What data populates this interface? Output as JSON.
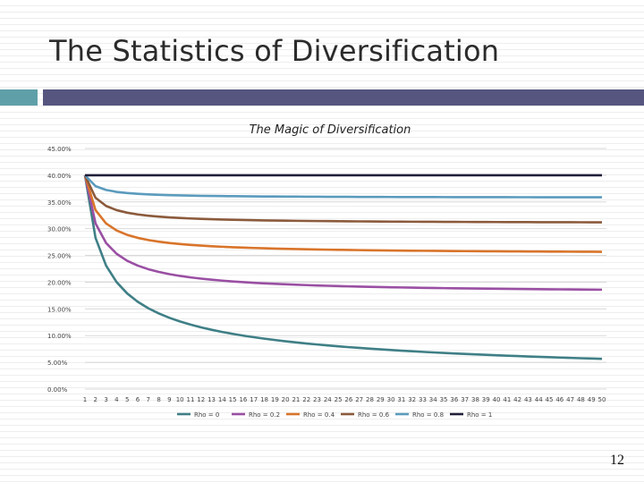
{
  "slide": {
    "title": "The Statistics of Diversification",
    "page_number": "12"
  },
  "colors": {
    "band_accent": "#5fa0a8",
    "band_main": "#55557f",
    "series": [
      "#3f7f86",
      "#9a4fa3",
      "#d9742a",
      "#8b5a3c",
      "#5b9bbd",
      "#1f1f3a"
    ]
  },
  "chart_data": {
    "type": "line",
    "title": "The Magic of Diversification",
    "xlabel": "",
    "ylabel": "",
    "x": [
      1,
      2,
      3,
      4,
      5,
      6,
      7,
      8,
      9,
      10,
      11,
      12,
      13,
      14,
      15,
      16,
      17,
      18,
      19,
      20,
      21,
      22,
      23,
      24,
      25,
      26,
      27,
      28,
      29,
      30,
      31,
      32,
      33,
      34,
      35,
      36,
      37,
      38,
      39,
      40,
      41,
      42,
      43,
      44,
      45,
      46,
      47,
      48,
      49,
      50
    ],
    "ylim": [
      0,
      0.45
    ],
    "yticks": [
      0,
      0.05,
      0.1,
      0.15,
      0.2,
      0.25,
      0.3,
      0.35,
      0.4,
      0.45
    ],
    "ytick_labels": [
      "0.00%",
      "5.00%",
      "10.00%",
      "15.00%",
      "20.00%",
      "25.00%",
      "30.00%",
      "35.00%",
      "40.00%",
      "45.00%"
    ],
    "single_asset_sd": 0.4,
    "legend_position": "bottom",
    "grid": true,
    "series": [
      {
        "name": "Rho = 0",
        "rho": 0
      },
      {
        "name": "Rho = 0.2",
        "rho": 0.2
      },
      {
        "name": "Rho = 0.4",
        "rho": 0.4
      },
      {
        "name": "Rho = 0.6",
        "rho": 0.6
      },
      {
        "name": "Rho = 0.8",
        "rho": 0.8
      },
      {
        "name": "Rho = 1",
        "rho": 1
      }
    ]
  }
}
